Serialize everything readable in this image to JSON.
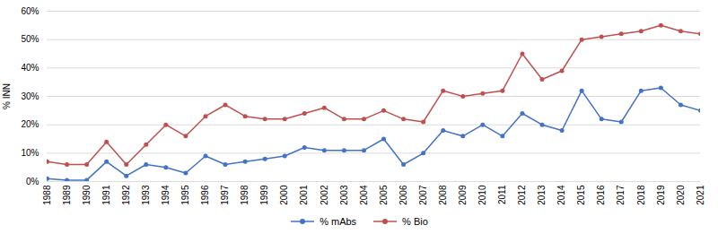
{
  "chart_data": {
    "type": "line",
    "x": [
      1988,
      1989,
      1990,
      1991,
      1992,
      1993,
      1994,
      1995,
      1996,
      1997,
      1998,
      1999,
      2000,
      2001,
      2002,
      2003,
      2004,
      2005,
      2006,
      2007,
      2008,
      2009,
      2010,
      2011,
      2012,
      2013,
      2014,
      2015,
      2016,
      2017,
      2018,
      2019,
      2020,
      2021
    ],
    "series": [
      {
        "name": "% mAbs",
        "color": "#4472C4",
        "marker": "circle",
        "values": [
          1,
          0.5,
          0.5,
          7,
          2,
          6,
          5,
          3,
          9,
          6,
          7,
          8,
          9,
          12,
          11,
          11,
          11,
          15,
          6,
          10,
          18,
          16,
          20,
          16,
          24,
          20,
          18,
          32,
          22,
          21,
          32,
          33,
          27,
          25
        ]
      },
      {
        "name": "% Bio",
        "color": "#C0504D",
        "marker": "circle",
        "values": [
          7,
          6,
          6,
          14,
          6,
          13,
          20,
          16,
          23,
          27,
          23,
          22,
          22,
          24,
          26,
          22,
          22,
          25,
          22,
          21,
          32,
          30,
          31,
          32,
          45,
          36,
          39,
          50,
          51,
          52,
          53,
          55,
          53,
          52
        ]
      }
    ],
    "ylabel": "% INN",
    "xlim": [
      1988,
      2021
    ],
    "xticks": [
      1988,
      1989,
      1990,
      1991,
      1992,
      1993,
      1994,
      1995,
      1996,
      1997,
      1998,
      1999,
      2000,
      2001,
      2002,
      2003,
      2004,
      2005,
      2006,
      2007,
      2008,
      2009,
      2010,
      2011,
      2012,
      2013,
      2014,
      2015,
      2016,
      2017,
      2018,
      2019,
      2020,
      2021
    ],
    "ylim": [
      0,
      60
    ],
    "yticks": [
      {
        "value": 0,
        "label": "0%"
      },
      {
        "value": 10,
        "label": "10%"
      },
      {
        "value": 20,
        "label": "20%"
      },
      {
        "value": 30,
        "label": "30%"
      },
      {
        "value": 40,
        "label": "40%"
      },
      {
        "value": 50,
        "label": "50%"
      },
      {
        "value": 60,
        "label": "60%"
      }
    ],
    "grid": true,
    "legend": "bottom"
  }
}
